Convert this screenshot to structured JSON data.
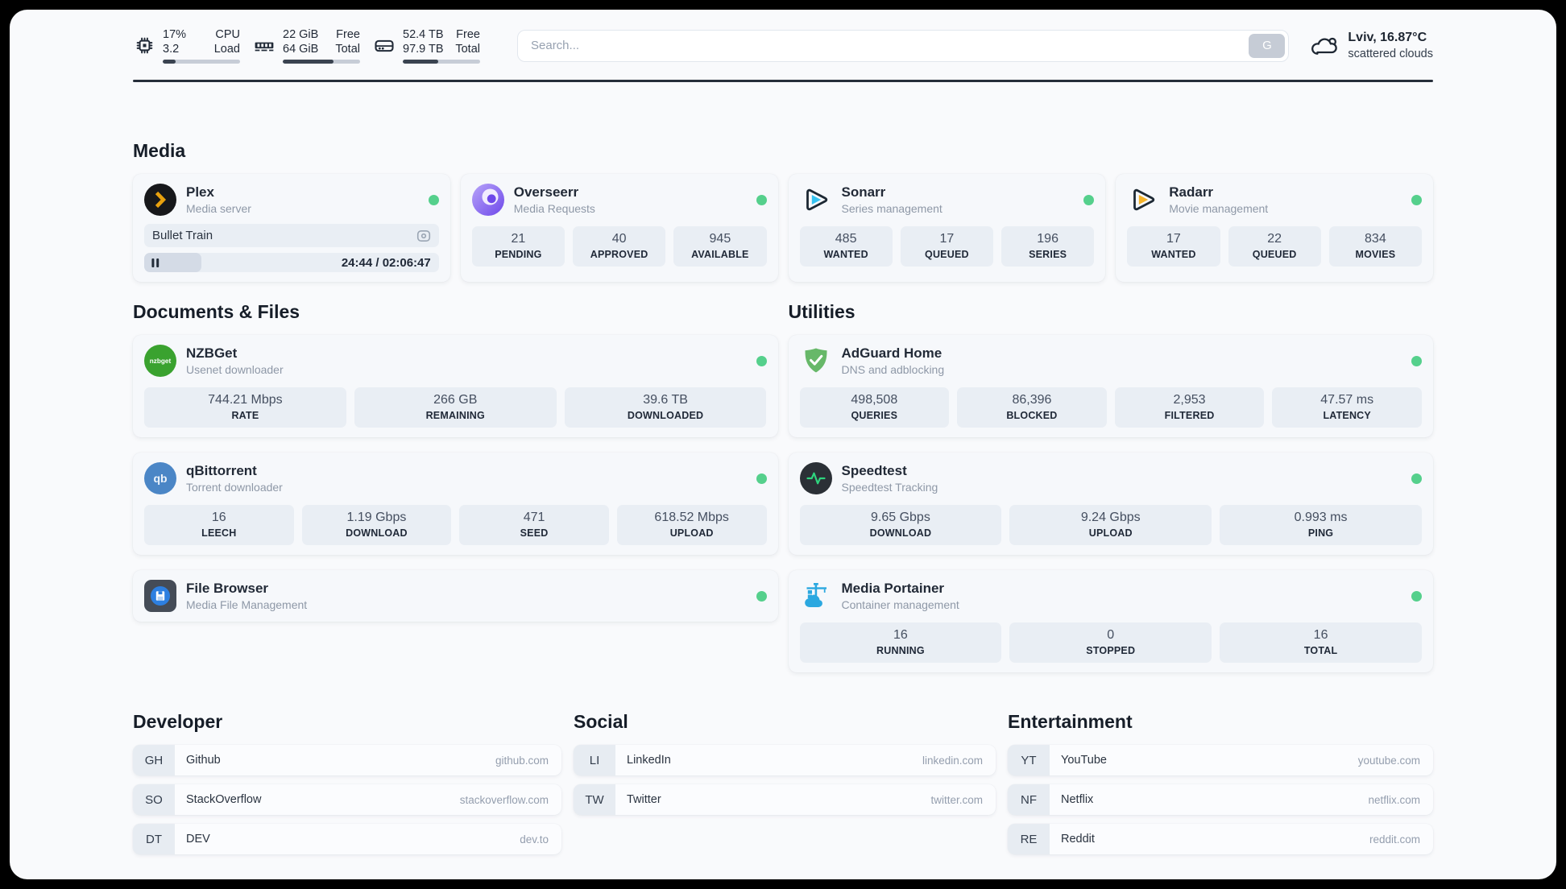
{
  "colors": {
    "status_online": "#55d08c",
    "panel_background": "#f9fafc",
    "card_background": "#f6f8fb",
    "stat_background": "#e9eef4",
    "text_primary": "#222a37",
    "text_secondary": "#8e98a7",
    "plex_accent": "#e8a10e",
    "sonarr_accent": "#36c3f1",
    "radarr_accent": "#f5b32a"
  },
  "topbar": {
    "resources": [
      {
        "icon": "cpu-icon",
        "values": [
          "17%",
          "3.2"
        ],
        "labels": [
          "CPU",
          "Load"
        ],
        "used_percent": 17
      },
      {
        "icon": "ram-icon",
        "values": [
          "22 GiB",
          "64 GiB"
        ],
        "labels": [
          "Free",
          "Total"
        ],
        "used_percent": 66
      },
      {
        "icon": "disk-icon",
        "values": [
          "52.4 TB",
          "97.9 TB"
        ],
        "labels": [
          "Free",
          "Total"
        ],
        "used_percent": 46
      }
    ],
    "search": {
      "placeholder": "Search...",
      "button_label": "G"
    },
    "weather": {
      "icon": "cloud-icon",
      "location_temperature": "Lviv, 16.87°C",
      "condition": "scattered clouds"
    }
  },
  "media": {
    "heading": "Media",
    "cards": [
      {
        "icon": "plex-icon",
        "title": "Plex",
        "subtitle": "Media server",
        "online": true,
        "player": {
          "now_playing": "Bullet Train",
          "time": "24:44 / 02:06:47",
          "progress_percent": 19.5,
          "state": "paused"
        }
      },
      {
        "icon": "overseerr-icon",
        "title": "Overseerr",
        "subtitle": "Media Requests",
        "online": true,
        "stats": [
          {
            "value": "21",
            "label": "PENDING"
          },
          {
            "value": "40",
            "label": "APPROVED"
          },
          {
            "value": "945",
            "label": "AVAILABLE"
          }
        ]
      },
      {
        "icon": "sonarr-icon",
        "title": "Sonarr",
        "subtitle": "Series management",
        "online": true,
        "stats": [
          {
            "value": "485",
            "label": "WANTED"
          },
          {
            "value": "17",
            "label": "QUEUED"
          },
          {
            "value": "196",
            "label": "SERIES"
          }
        ]
      },
      {
        "icon": "radarr-icon",
        "title": "Radarr",
        "subtitle": "Movie management",
        "online": true,
        "stats": [
          {
            "value": "17",
            "label": "WANTED"
          },
          {
            "value": "22",
            "label": "QUEUED"
          },
          {
            "value": "834",
            "label": "MOVIES"
          }
        ]
      }
    ]
  },
  "documents": {
    "heading": "Documents & Files",
    "cards": [
      {
        "icon": "nzbget-icon",
        "title": "NZBGet",
        "subtitle": "Usenet downloader",
        "online": true,
        "stats": [
          {
            "value": "744.21 Mbps",
            "label": "RATE"
          },
          {
            "value": "266 GB",
            "label": "REMAINING"
          },
          {
            "value": "39.6 TB",
            "label": "DOWNLOADED"
          }
        ]
      },
      {
        "icon": "qbittorrent-icon",
        "title": "qBittorrent",
        "subtitle": "Torrent downloader",
        "online": true,
        "stats": [
          {
            "value": "16",
            "label": "LEECH"
          },
          {
            "value": "1.19 Gbps",
            "label": "DOWNLOAD"
          },
          {
            "value": "471",
            "label": "SEED"
          },
          {
            "value": "618.52 Mbps",
            "label": "UPLOAD"
          }
        ]
      },
      {
        "icon": "filebrowser-icon",
        "title": "File Browser",
        "subtitle": "Media File Management",
        "online": true
      }
    ]
  },
  "utilities": {
    "heading": "Utilities",
    "cards": [
      {
        "icon": "adguard-icon",
        "title": "AdGuard Home",
        "subtitle": "DNS and adblocking",
        "online": true,
        "stats": [
          {
            "value": "498,508",
            "label": "QUERIES"
          },
          {
            "value": "86,396",
            "label": "BLOCKED"
          },
          {
            "value": "2,953",
            "label": "FILTERED"
          },
          {
            "value": "47.57 ms",
            "label": "LATENCY"
          }
        ]
      },
      {
        "icon": "speedtest-icon",
        "title": "Speedtest",
        "subtitle": "Speedtest Tracking",
        "online": true,
        "stats": [
          {
            "value": "9.65 Gbps",
            "label": "DOWNLOAD"
          },
          {
            "value": "9.24 Gbps",
            "label": "UPLOAD"
          },
          {
            "value": "0.993 ms",
            "label": "PING"
          }
        ]
      },
      {
        "icon": "portainer-icon",
        "title": "Media Portainer",
        "subtitle": "Container management",
        "online": true,
        "stats": [
          {
            "value": "16",
            "label": "RUNNING"
          },
          {
            "value": "0",
            "label": "STOPPED"
          },
          {
            "value": "16",
            "label": "TOTAL"
          }
        ]
      }
    ]
  },
  "bookmarks": [
    {
      "heading": "Developer",
      "links": [
        {
          "abbr": "GH",
          "name": "Github",
          "domain": "github.com"
        },
        {
          "abbr": "SO",
          "name": "StackOverflow",
          "domain": "stackoverflow.com"
        },
        {
          "abbr": "DT",
          "name": "DEV",
          "domain": "dev.to"
        }
      ]
    },
    {
      "heading": "Social",
      "links": [
        {
          "abbr": "LI",
          "name": "LinkedIn",
          "domain": "linkedin.com"
        },
        {
          "abbr": "TW",
          "name": "Twitter",
          "domain": "twitter.com"
        }
      ]
    },
    {
      "heading": "Entertainment",
      "links": [
        {
          "abbr": "YT",
          "name": "YouTube",
          "domain": "youtube.com"
        },
        {
          "abbr": "NF",
          "name": "Netflix",
          "domain": "netflix.com"
        },
        {
          "abbr": "RE",
          "name": "Reddit",
          "domain": "reddit.com"
        }
      ]
    }
  ]
}
